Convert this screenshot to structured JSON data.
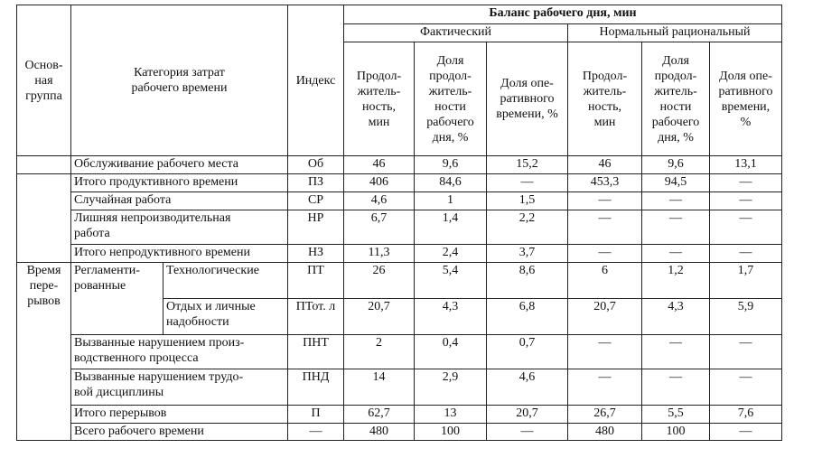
{
  "table": {
    "header": {
      "group": "Основ-\nная\nгруппа",
      "category": "Категория затрат\nрабочего времени",
      "index": "Индекс",
      "balance": "Баланс рабочего дня, мин",
      "actual": "Фактический",
      "normal": "Нормальный рациональный",
      "columns": [
        "Продол-\nжитель-\nность,\nмин",
        "Доля\nпродол-\nжитель-\nности\nрабочего\nдня, %",
        "Доля опе-\nративного\nвремени, %",
        "Продол-\nжитель-\nность,\nмин",
        "Доля\nпродол-\nжитель-\nности\nрабочего\nдня, %",
        "Доля опе-\nративного\nвремени,\n%"
      ]
    },
    "group_label": "Время\nпере-\nрывов",
    "rows": [
      {
        "category": "Обслуживание рабочего места",
        "index": "Об",
        "values": [
          "46",
          "9,6",
          "15,2",
          "46",
          "9,6",
          "13,1"
        ]
      },
      {
        "category": "Итого продуктивного времени",
        "index": "ПЗ",
        "values": [
          "406",
          "84,6",
          "—",
          "453,3",
          "94,5",
          "—"
        ]
      },
      {
        "category": "Случайная работа",
        "index": "СР",
        "values": [
          "4,6",
          "1",
          "1,5",
          "—",
          "—",
          "—"
        ]
      },
      {
        "category": "Лишняя непроизводительная\nработа",
        "index": "НР",
        "values": [
          "6,7",
          "1,4",
          "2,2",
          "—",
          "—",
          "—"
        ]
      },
      {
        "category": "Итого непродуктивного времени",
        "index": "НЗ",
        "values": [
          "11,3",
          "2,4",
          "3,7",
          "—",
          "—",
          "—"
        ]
      },
      {
        "subgroup": "Регламенти-\nрованные",
        "category": "Технологические",
        "index": "ПТ",
        "values": [
          "26",
          "5,4",
          "8,6",
          "6",
          "1,2",
          "1,7"
        ]
      },
      {
        "category": "Отдых и личные\nнадобности",
        "index": "ПТот. л",
        "values": [
          "20,7",
          "4,3",
          "6,8",
          "20,7",
          "4,3",
          "5,9"
        ]
      },
      {
        "category": "Вызванные нарушением произ-\nводственного процесса",
        "index": "ПНТ",
        "values": [
          "2",
          "0,4",
          "0,7",
          "—",
          "—",
          "—"
        ]
      },
      {
        "category": "Вызванные нарушением трудо-\nвой дисциплины",
        "index": "ПНД",
        "values": [
          "14",
          "2,9",
          "4,6",
          "—",
          "—",
          "—"
        ]
      },
      {
        "category": "Итого перерывов",
        "index": "П",
        "values": [
          "62,7",
          "13",
          "20,7",
          "26,7",
          "5,5",
          "7,6"
        ]
      },
      {
        "category": "Всего рабочего времени",
        "index": "—",
        "values": [
          "480",
          "100",
          "—",
          "480",
          "100",
          "—"
        ]
      }
    ]
  }
}
